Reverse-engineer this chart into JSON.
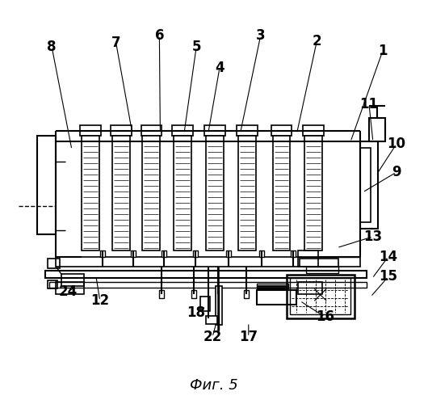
{
  "title": "Фиг. 5",
  "bg": "#ffffff",
  "lc": "#000000",
  "fig_width": 5.3,
  "fig_height": 5.0,
  "dpi": 100,
  "leaders": [
    [
      475,
      62,
      435,
      175,
      "1"
    ],
    [
      393,
      50,
      368,
      165,
      "2"
    ],
    [
      323,
      43,
      298,
      163,
      "3"
    ],
    [
      272,
      83,
      258,
      163,
      "4"
    ],
    [
      243,
      57,
      228,
      163,
      "5"
    ],
    [
      197,
      43,
      198,
      163,
      "6"
    ],
    [
      143,
      52,
      163,
      163,
      "7"
    ],
    [
      63,
      57,
      88,
      185,
      "8"
    ],
    [
      492,
      213,
      450,
      238,
      "9"
    ],
    [
      492,
      178,
      468,
      215,
      "10"
    ],
    [
      458,
      128,
      463,
      175,
      "11"
    ],
    [
      123,
      373,
      118,
      342,
      "12"
    ],
    [
      463,
      293,
      418,
      307,
      "13"
    ],
    [
      482,
      318,
      462,
      345,
      "14"
    ],
    [
      482,
      343,
      460,
      368,
      "15"
    ],
    [
      403,
      393,
      372,
      373,
      "16"
    ],
    [
      308,
      418,
      308,
      400,
      "17"
    ],
    [
      243,
      388,
      255,
      380,
      "18"
    ],
    [
      263,
      418,
      268,
      400,
      "22"
    ],
    [
      83,
      362,
      93,
      355,
      "24"
    ]
  ]
}
